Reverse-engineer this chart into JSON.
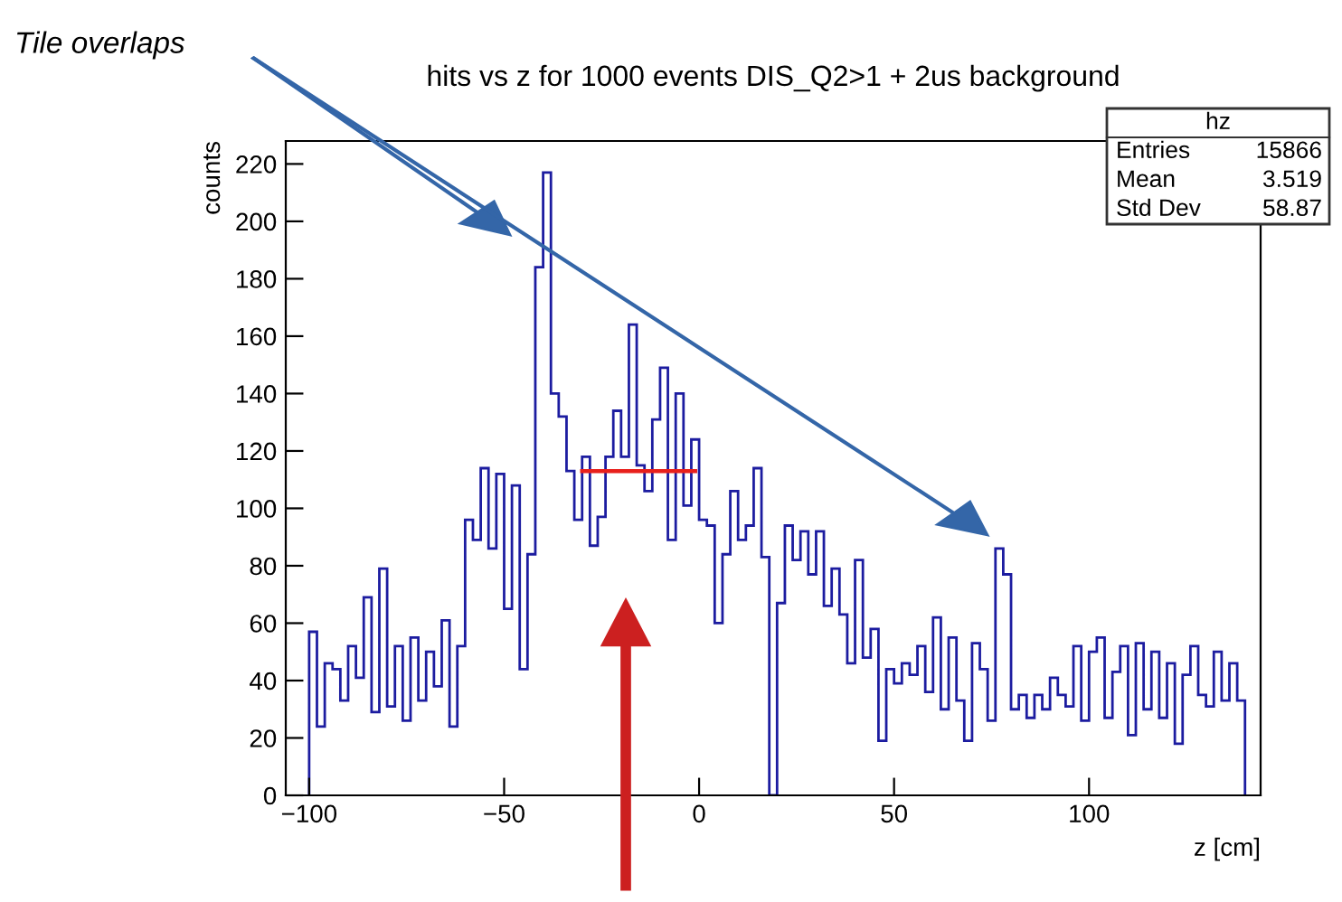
{
  "chart_data": {
    "type": "histogram",
    "title": "hits vs z for 1000 events DIS_Q2>1 + 2us background",
    "xlabel": "z [cm]",
    "ylabel": "counts",
    "bins": [
      -100,
      -98,
      -96,
      -94,
      -92,
      -90,
      -88,
      -86,
      -84,
      -82,
      -80,
      -78,
      -76,
      -74,
      -72,
      -70,
      -68,
      -66,
      -64,
      -62,
      -60,
      -58,
      -56,
      -54,
      -52,
      -50,
      -48,
      -46,
      -44,
      -42,
      -40,
      -38,
      -36,
      -34,
      -32,
      -30,
      -28,
      -26,
      -24,
      -22,
      -20,
      -18,
      -16,
      -14,
      -12,
      -10,
      -8,
      -6,
      -4,
      -2,
      0,
      2,
      4,
      6,
      8,
      10,
      12,
      14,
      16,
      18,
      20,
      22,
      24,
      26,
      28,
      30,
      32,
      34,
      36,
      38,
      40,
      42,
      44,
      46,
      48,
      50,
      52,
      54,
      56,
      58,
      60,
      62,
      64,
      66,
      68,
      70,
      72,
      74,
      76,
      78,
      80,
      82,
      84,
      86,
      88,
      90,
      92,
      94,
      96,
      98,
      100,
      102,
      104,
      106,
      108,
      110,
      112,
      114,
      116,
      118,
      120,
      122,
      124,
      126,
      128,
      130,
      132,
      134,
      136,
      138,
      140
    ],
    "values": [
      57,
      24,
      46,
      44,
      33,
      52,
      41,
      69,
      29,
      79,
      31,
      52,
      26,
      55,
      33,
      50,
      38,
      61,
      24,
      52,
      96,
      89,
      114,
      86,
      112,
      65,
      108,
      44,
      84,
      184,
      217,
      140,
      132,
      113,
      96,
      118,
      87,
      97,
      118,
      134,
      118,
      164,
      115,
      106,
      131,
      149,
      89,
      140,
      101,
      124,
      96,
      94,
      60,
      84,
      106,
      89,
      94,
      114,
      83,
      0,
      67,
      94,
      82,
      92,
      77,
      92,
      66,
      79,
      63,
      46,
      82,
      48,
      58,
      19,
      44,
      39,
      46,
      42,
      52,
      36,
      62,
      30,
      55,
      33,
      19,
      53,
      44,
      26,
      86,
      77,
      30,
      35,
      27,
      35,
      30,
      41,
      35,
      31,
      52,
      26,
      50,
      55,
      27,
      43,
      52,
      21,
      53,
      30,
      50,
      27,
      46,
      18,
      42,
      52,
      35,
      31,
      50,
      33,
      46,
      33
    ],
    "color": "#1c1ca0",
    "series": [
      {
        "type": "line",
        "color": "#e8201c",
        "x": [
          -30,
          -1
        ],
        "values": [
          113,
          113
        ]
      }
    ],
    "xlim": [
      -106,
      144
    ],
    "ylim": [
      0,
      228
    ],
    "xticks": [
      {
        "value": -100,
        "label": "−100"
      },
      {
        "value": -50,
        "label": "−50"
      },
      0,
      50,
      100
    ],
    "yticks": [
      0,
      20,
      40,
      60,
      80,
      100,
      120,
      140,
      160,
      180,
      200,
      220
    ],
    "annotations": [
      "Tile overlaps",
      "hz",
      "Entries",
      "15866",
      "Mean",
      "3.519",
      "Std Dev",
      "58.87"
    ]
  }
}
